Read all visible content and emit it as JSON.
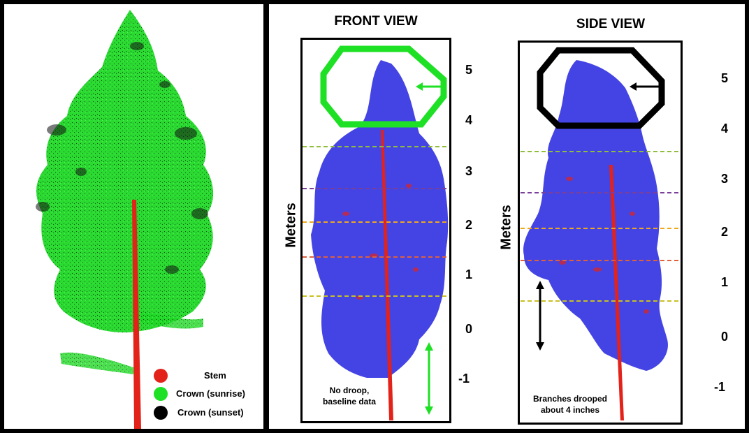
{
  "legend": {
    "items": [
      {
        "label": "Stem",
        "color": "#e32219"
      },
      {
        "label": "Crown (sunrise)",
        "color": "#1ee024"
      },
      {
        "label": "Crown (sunset)",
        "color": "#000000"
      }
    ]
  },
  "front_view": {
    "title": "FRONT VIEW",
    "axis_label": "Meters",
    "ticks": [
      "5",
      "4",
      "3",
      "2",
      "1",
      "0",
      "-1"
    ],
    "note": "No droop,\nbaseline data",
    "highlight_color": "#1ee024"
  },
  "side_view": {
    "title": "SIDE VIEW",
    "axis_label": "Meters",
    "ticks": [
      "5",
      "4",
      "3",
      "2",
      "1",
      "0",
      "-1"
    ],
    "note": "Branches drooped\nabout 4 inches",
    "highlight_color": "#000000"
  },
  "colors": {
    "stem": "#e32219",
    "crown_blue": "#2a2ae0",
    "dash_green": "#8fbf3a",
    "dash_purple": "#7a3f9a",
    "dash_orange": "#f0a81a",
    "dash_red": "#e0603a",
    "dash_yellow": "#c9c020"
  }
}
